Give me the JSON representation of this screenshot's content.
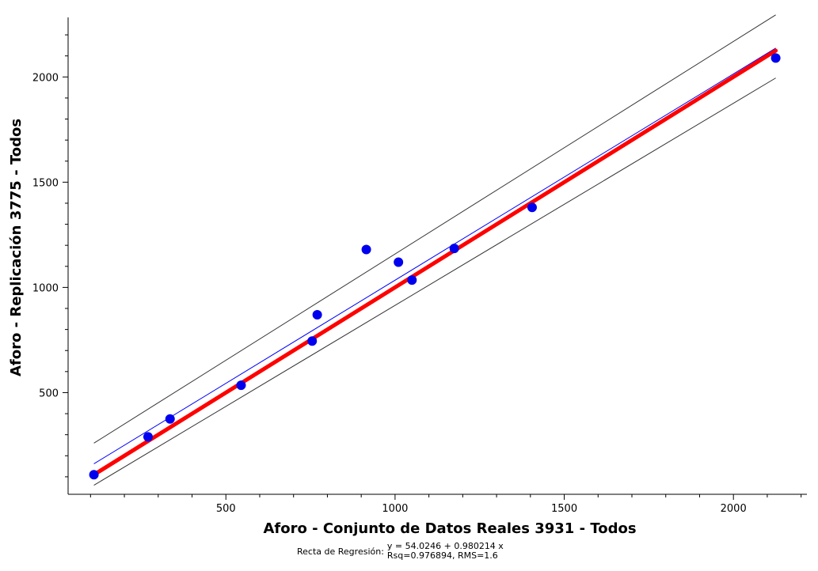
{
  "chart_data": {
    "type": "scatter",
    "title": "",
    "xlabel": "Aforo - Conjunto de Datos Reales 3931 - Todos",
    "ylabel": "Aforo - Replicación 3775 - Todos",
    "xlim": [
      50,
      2300
    ],
    "ylim": [
      50,
      2350
    ],
    "xticks": [
      500,
      1000,
      1500,
      2000
    ],
    "yticks": [
      500,
      1000,
      1500,
      2000
    ],
    "grid": false,
    "points": {
      "x": [
        110,
        270,
        335,
        545,
        755,
        770,
        915,
        1010,
        1050,
        1175,
        1405,
        2125
      ],
      "y": [
        110,
        290,
        375,
        535,
        745,
        870,
        1180,
        1120,
        1035,
        1185,
        1380,
        2090
      ],
      "color": "#0000ee"
    },
    "regression_line": {
      "intercept": 54.0246,
      "slope": 0.980214,
      "x_range": [
        110,
        2125
      ],
      "color": "#0000ff"
    },
    "identity_line": {
      "x_range": [
        110,
        2125
      ],
      "color": "#ff0000"
    },
    "confidence_bounds": {
      "upper": {
        "x": [
          110,
          2125
        ],
        "y": [
          260,
          2295
        ]
      },
      "lower": {
        "x": [
          110,
          2125
        ],
        "y": [
          60,
          1995
        ]
      },
      "color": "#333333"
    }
  },
  "caption": {
    "label": "Recta de Regresión:",
    "equation": "y = 54.0246 + 0.980214 x",
    "stats": "Rsq=0.976894, RMS=1.6"
  }
}
